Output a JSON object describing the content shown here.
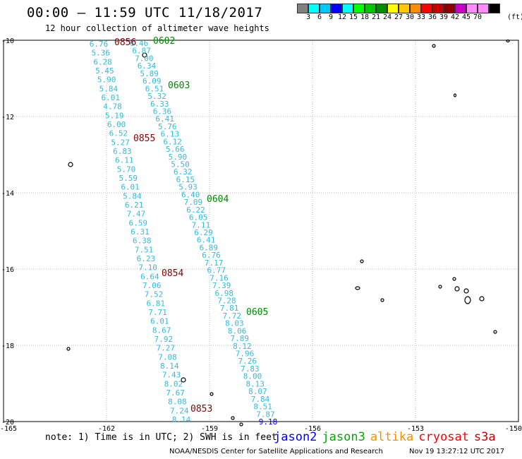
{
  "title": "00:00 – 11:59 UTC 11/18/2017",
  "subtitle": "12 hour collection of altimeter wave heights",
  "legend": {
    "unit": "(ft)",
    "colors": [
      "#808080",
      "#00ffff",
      "#00c8ff",
      "#0000ff",
      "#00ffff",
      "#00ff00",
      "#00c800",
      "#008c00",
      "#ffff00",
      "#ffc800",
      "#ff8c00",
      "#ff0000",
      "#c80000",
      "#8c0000",
      "#c800c8",
      "#ff8cff",
      "#ff8cff",
      "#000000"
    ],
    "labels": [
      "3",
      "6",
      "9",
      "12",
      "15",
      "18",
      "21",
      "24",
      "27",
      "30",
      "33",
      "36",
      "39",
      "42",
      "45",
      "70"
    ]
  },
  "axes": {
    "y_labels": [
      "-10",
      "-12",
      "-14",
      "-16",
      "-18",
      "-20"
    ],
    "x_labels": [
      "-165",
      "-162",
      "-159",
      "-156",
      "-153",
      "-150"
    ]
  },
  "tracks": [
    {
      "id": "left",
      "points": [
        {
          "v": "6.76",
          "c": "#33bbdd"
        },
        {
          "v": "5.36",
          "c": "#33bbdd"
        },
        {
          "v": "6.28",
          "c": "#33bbdd"
        },
        {
          "v": "5.45",
          "c": "#33bbdd"
        },
        {
          "v": "5.90",
          "c": "#33bbdd"
        },
        {
          "v": "5.84",
          "c": "#33bbdd"
        },
        {
          "v": "6.01",
          "c": "#33bbdd"
        },
        {
          "v": "4.78",
          "c": "#33bbdd"
        },
        {
          "v": "5.19",
          "c": "#33bbdd"
        },
        {
          "v": "6.00",
          "c": "#33bbdd"
        },
        {
          "v": "6.52",
          "c": "#33bbdd"
        },
        {
          "v": "5.27",
          "c": "#33bbdd"
        },
        {
          "v": "6.83",
          "c": "#33bbdd"
        },
        {
          "v": "6.11",
          "c": "#33bbdd"
        },
        {
          "v": "5.70",
          "c": "#33bbdd"
        },
        {
          "v": "5.59",
          "c": "#33bbdd"
        },
        {
          "v": "6.01",
          "c": "#33bbdd"
        },
        {
          "v": "5.84",
          "c": "#33bbdd"
        },
        {
          "v": "6.21",
          "c": "#33bbdd"
        },
        {
          "v": "7.47",
          "c": "#33bbdd"
        },
        {
          "v": "6.59",
          "c": "#33bbdd"
        },
        {
          "v": "6.31",
          "c": "#33bbdd"
        },
        {
          "v": "6.38",
          "c": "#33bbdd"
        },
        {
          "v": "7.51",
          "c": "#33bbdd"
        },
        {
          "v": "6.23",
          "c": "#33bbdd"
        },
        {
          "v": "7.10",
          "c": "#33bbdd"
        },
        {
          "v": "6.64",
          "c": "#33bbdd"
        },
        {
          "v": "7.06",
          "c": "#33bbdd"
        },
        {
          "v": "7.52",
          "c": "#33bbdd"
        },
        {
          "v": "6.81",
          "c": "#33bbdd"
        },
        {
          "v": "7.71",
          "c": "#33bbdd"
        },
        {
          "v": "6.01",
          "c": "#33bbdd"
        },
        {
          "v": "8.67",
          "c": "#33bbdd"
        },
        {
          "v": "7.92",
          "c": "#33bbdd"
        },
        {
          "v": "7.27",
          "c": "#33bbdd"
        },
        {
          "v": "7.08",
          "c": "#33bbdd"
        },
        {
          "v": "8.14",
          "c": "#33bbdd"
        },
        {
          "v": "7.43",
          "c": "#33bbdd"
        },
        {
          "v": "8.02",
          "c": "#33bbdd"
        },
        {
          "v": "7.67",
          "c": "#33bbdd"
        },
        {
          "v": "8.08",
          "c": "#33bbdd"
        },
        {
          "v": "7.24",
          "c": "#33bbdd"
        },
        {
          "v": "8.14",
          "c": "#33bbdd"
        }
      ]
    },
    {
      "id": "right",
      "points": [
        {
          "v": "6.46",
          "c": "#33bbdd"
        },
        {
          "v": "6.87",
          "c": "#33bbdd"
        },
        {
          "v": "7.00",
          "c": "#33bbdd"
        },
        {
          "v": "6.34",
          "c": "#33bbdd"
        },
        {
          "v": "5.89",
          "c": "#33bbdd"
        },
        {
          "v": "6.09",
          "c": "#33bbdd"
        },
        {
          "v": "6.51",
          "c": "#33bbdd"
        },
        {
          "v": "5.32",
          "c": "#33bbdd"
        },
        {
          "v": "6.33",
          "c": "#33bbdd"
        },
        {
          "v": "6.36",
          "c": "#33bbdd"
        },
        {
          "v": "6.41",
          "c": "#33bbdd"
        },
        {
          "v": "5.76",
          "c": "#33bbdd"
        },
        {
          "v": "6.13",
          "c": "#33bbdd"
        },
        {
          "v": "6.12",
          "c": "#33bbdd"
        },
        {
          "v": "5.66",
          "c": "#33bbdd"
        },
        {
          "v": "5.90",
          "c": "#33bbdd"
        },
        {
          "v": "5.50",
          "c": "#33bbdd"
        },
        {
          "v": "6.32",
          "c": "#33bbdd"
        },
        {
          "v": "6.15",
          "c": "#33bbdd"
        },
        {
          "v": "5.93",
          "c": "#33bbdd"
        },
        {
          "v": "6.40",
          "c": "#33bbdd"
        },
        {
          "v": "7.09",
          "c": "#33bbdd"
        },
        {
          "v": "6.22",
          "c": "#33bbdd"
        },
        {
          "v": "6.05",
          "c": "#33bbdd"
        },
        {
          "v": "7.11",
          "c": "#33bbdd"
        },
        {
          "v": "6.29",
          "c": "#33bbdd"
        },
        {
          "v": "6.41",
          "c": "#33bbdd"
        },
        {
          "v": "6.89",
          "c": "#33bbdd"
        },
        {
          "v": "6.76",
          "c": "#33bbdd"
        },
        {
          "v": "7.17",
          "c": "#33bbdd"
        },
        {
          "v": "6.77",
          "c": "#33bbdd"
        },
        {
          "v": "7.16",
          "c": "#33bbdd"
        },
        {
          "v": "7.39",
          "c": "#33bbdd"
        },
        {
          "v": "6.98",
          "c": "#33bbdd"
        },
        {
          "v": "7.28",
          "c": "#33bbdd"
        },
        {
          "v": "7.81",
          "c": "#33bbdd"
        },
        {
          "v": "7.72",
          "c": "#33bbdd"
        },
        {
          "v": "8.03",
          "c": "#33bbdd"
        },
        {
          "v": "8.06",
          "c": "#33bbdd"
        },
        {
          "v": "7.89",
          "c": "#33bbdd"
        },
        {
          "v": "8.12",
          "c": "#33bbdd"
        },
        {
          "v": "7.96",
          "c": "#33bbdd"
        },
        {
          "v": "7.26",
          "c": "#33bbdd"
        },
        {
          "v": "7.83",
          "c": "#33bbdd"
        },
        {
          "v": "8.00",
          "c": "#33bbdd"
        },
        {
          "v": "8.13",
          "c": "#33bbdd"
        },
        {
          "v": "8.07",
          "c": "#33bbdd"
        },
        {
          "v": "7.84",
          "c": "#33bbdd"
        },
        {
          "v": "8.51",
          "c": "#33bbdd"
        },
        {
          "v": "7.87",
          "c": "#33bbdd"
        },
        {
          "v": "9.18",
          "c": "#0000ee"
        }
      ]
    }
  ],
  "time_labels": [
    {
      "t": "0856",
      "c": "#880000"
    },
    {
      "t": "0602",
      "c": "#008800"
    },
    {
      "t": "0603",
      "c": "#008800"
    },
    {
      "t": "0855",
      "c": "#880000"
    },
    {
      "t": "0604",
      "c": "#008800"
    },
    {
      "t": "0854",
      "c": "#880000"
    },
    {
      "t": "0605",
      "c": "#008800"
    },
    {
      "t": "0853",
      "c": "#880000"
    }
  ],
  "note": "note: 1) Time is in UTC; 2) SWH is in feet",
  "satellites": [
    {
      "name": "jason2",
      "color": "#0000ff"
    },
    {
      "name": "jason3",
      "color": "#00aa00"
    },
    {
      "name": "altika",
      "color": "#ff8c00"
    },
    {
      "name": "cryosat",
      "color": "#ff0000"
    },
    {
      "name": "s3a",
      "color": "#cc0000"
    }
  ],
  "credit": "NOAA/NESDIS Center for Satellite Applications and Research",
  "timestamp": "Nov 19 13:27:12 UTC 2017"
}
